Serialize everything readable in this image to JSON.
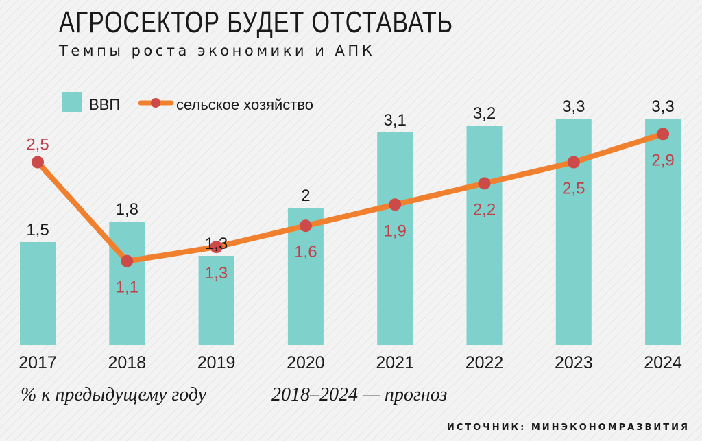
{
  "header": {
    "title": "АГРОСЕКТОР БУДЕТ ОТСТАВАТЬ",
    "subtitle": "Темпы роста экономики и АПК"
  },
  "footer": {
    "note_unit": "% к предыдущему году",
    "note_forecast": "2018–2024 — прогноз",
    "source": "ИСТОЧНИК: МИНЭКОНОМРАЗВИТИЯ"
  },
  "colors": {
    "bar": "#7fd1cc",
    "line": "#f0802e",
    "marker": "#cc4a4a",
    "line_label": "#c0404a"
  },
  "chart_data": {
    "type": "bar",
    "title": "АГРОСЕКТОР БУДЕТ ОТСТАВАТЬ",
    "subtitle": "Темпы роста экономики и АПК",
    "categories": [
      "2017",
      "2018",
      "2019",
      "2020",
      "2021",
      "2022",
      "2023",
      "2024"
    ],
    "legend_position": "top-left",
    "grid": false,
    "series": [
      {
        "name": "ВВП",
        "type": "bar",
        "values": [
          1.5,
          1.8,
          1.3,
          2,
          3.1,
          3.2,
          3.3,
          3.3
        ],
        "labels": [
          "1,5",
          "1,8",
          "1,3",
          "2",
          "3,1",
          "3,2",
          "3,3",
          "3,3"
        ]
      },
      {
        "name": "сельское хозяйство",
        "type": "line",
        "values": [
          2.5,
          1.1,
          1.3,
          1.6,
          1.9,
          2.2,
          2.5,
          2.9
        ],
        "labels": [
          "2,5",
          "1,1",
          "1,3",
          "1,6",
          "1,9",
          "2,2",
          "2,5",
          "2,9"
        ]
      }
    ]
  }
}
